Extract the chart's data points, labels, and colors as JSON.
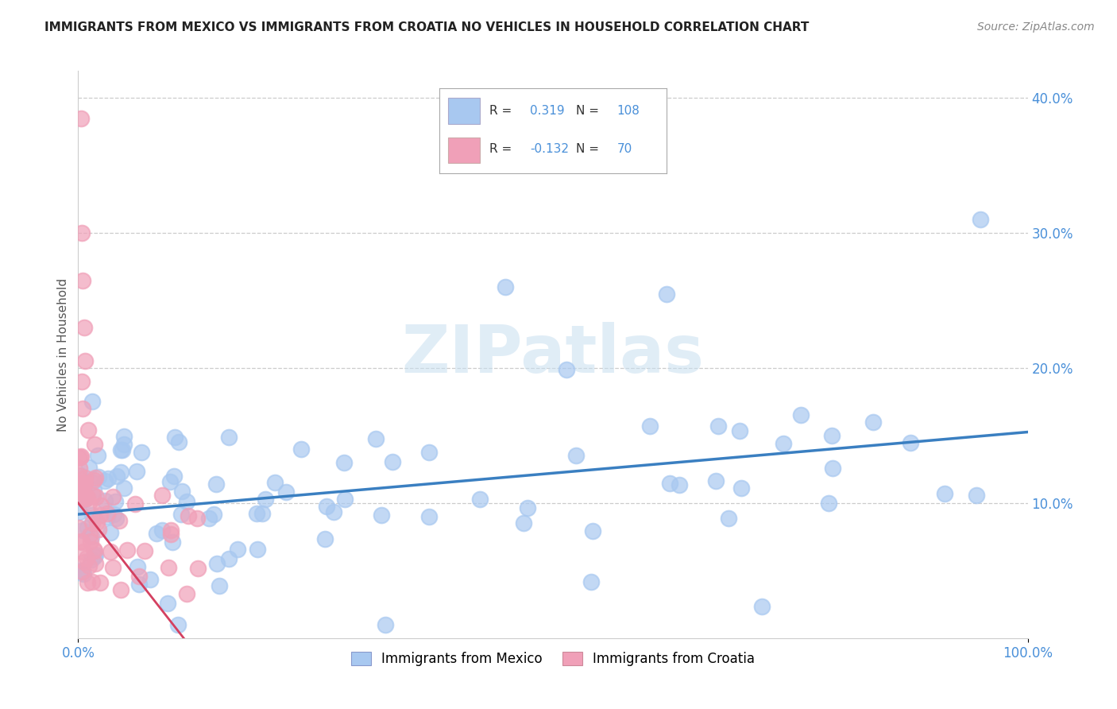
{
  "title": "IMMIGRANTS FROM MEXICO VS IMMIGRANTS FROM CROATIA NO VEHICLES IN HOUSEHOLD CORRELATION CHART",
  "source": "Source: ZipAtlas.com",
  "ylabel": "No Vehicles in Household",
  "legend_mexico": "Immigrants from Mexico",
  "legend_croatia": "Immigrants from Croatia",
  "R_mexico": "0.319",
  "N_mexico": "108",
  "R_croatia": "-0.132",
  "N_croatia": "70",
  "color_mexico": "#a8c8f0",
  "color_croatia": "#f0a0b8",
  "color_mexico_line": "#3a7fc1",
  "color_croatia_line": "#d44060",
  "color_text_blue": "#4a90d9",
  "watermark": "ZIPatlas",
  "background_color": "#ffffff",
  "xlim": [
    0.0,
    1.0
  ],
  "ylim": [
    0.0,
    0.42
  ],
  "ytick_positions": [
    0.1,
    0.2,
    0.3,
    0.4
  ],
  "ytick_labels": [
    "10.0%",
    "20.0%",
    "30.0%",
    "40.0%"
  ]
}
